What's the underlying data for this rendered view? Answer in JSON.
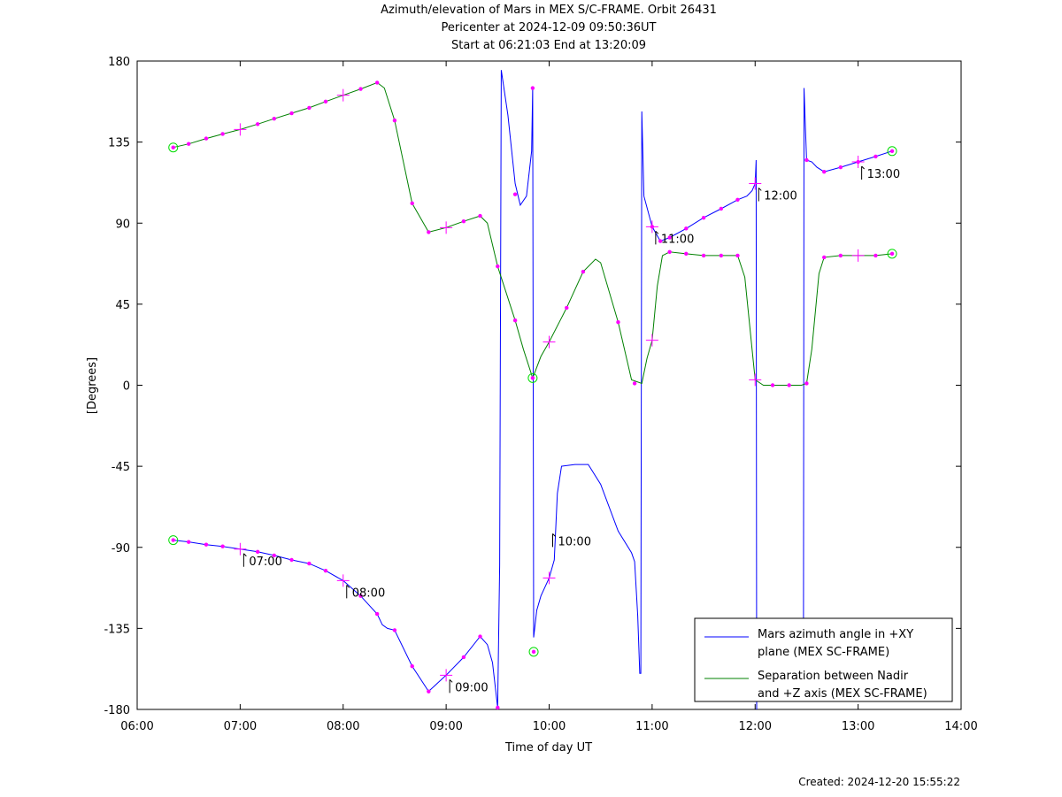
{
  "header": {
    "title": "Azimuth/elevation of Mars in MEX S/C-FRAME.  Orbit 26431",
    "pericenter": "Pericenter at 2024-12-09 09:50:36UT",
    "span": "Start at 06:21:03 End at 13:20:09"
  },
  "footer": {
    "created": "Created: 2024-12-20 15:55:22"
  },
  "chart_data": {
    "type": "line",
    "xlabel": "Time of day UT",
    "ylabel": "[Degrees]",
    "xlim": [
      6.0,
      14.0
    ],
    "ylim": [
      -180,
      180
    ],
    "xticks": [
      6,
      7,
      8,
      9,
      10,
      11,
      12,
      13,
      14
    ],
    "xtick_labels": [
      "06:00",
      "07:00",
      "08:00",
      "09:00",
      "10:00",
      "11:00",
      "12:00",
      "13:00",
      "14:00"
    ],
    "yticks": [
      180,
      135,
      90,
      45,
      0,
      -45,
      -90,
      -135,
      -180
    ],
    "ytick_labels": [
      "180",
      "135",
      "90",
      "45",
      "0",
      "-45",
      "-90",
      "-135",
      "-180"
    ],
    "grid": false,
    "legend_position": "bottom-right",
    "series": [
      {
        "name": "Mars azimuth angle in +XY plane (MEX SC-FRAME)",
        "legend_lines": [
          "Mars azimuth angle in +XY",
          "plane (MEX SC-FRAME)"
        ],
        "color": "#0000ff",
        "segments": [
          [
            [
              6.35,
              -86
            ],
            [
              6.5,
              -87
            ],
            [
              6.67,
              -88.5
            ],
            [
              6.83,
              -89.5
            ],
            [
              7.0,
              -91
            ],
            [
              7.17,
              -92.5
            ],
            [
              7.33,
              -94.5
            ],
            [
              7.5,
              -97
            ],
            [
              7.67,
              -99
            ],
            [
              7.83,
              -103
            ],
            [
              8.0,
              -108.5
            ],
            [
              8.17,
              -117
            ],
            [
              8.33,
              -127
            ],
            [
              8.38,
              -133
            ],
            [
              8.43,
              -135
            ],
            [
              8.5,
              -136
            ],
            [
              8.67,
              -156
            ],
            [
              8.83,
              -170
            ],
            [
              9.0,
              -161
            ],
            [
              9.17,
              -151
            ],
            [
              9.33,
              -139.5
            ],
            [
              9.4,
              -144
            ],
            [
              9.45,
              -154
            ],
            [
              9.5,
              -179
            ],
            [
              9.52,
              -100
            ],
            [
              9.535,
              175
            ],
            [
              9.6,
              150
            ],
            [
              9.67,
              112
            ],
            [
              9.72,
              100
            ],
            [
              9.78,
              105
            ],
            [
              9.83,
              130
            ],
            [
              9.84,
              165
            ],
            [
              9.85,
              -140
            ],
            [
              9.88,
              -125
            ],
            [
              9.92,
              -117
            ],
            [
              10.0,
              -107
            ],
            [
              10.05,
              -97
            ],
            [
              10.08,
              -60
            ],
            [
              10.12,
              -45
            ],
            [
              10.25,
              -44
            ],
            [
              10.38,
              -44
            ],
            [
              10.5,
              -55
            ],
            [
              10.67,
              -81
            ],
            [
              10.8,
              -93
            ],
            [
              10.83,
              -98
            ],
            [
              10.86,
              -128
            ],
            [
              10.88,
              -160
            ],
            [
              10.89,
              -160
            ],
            [
              10.9,
              152
            ],
            [
              10.92,
              105
            ],
            [
              11.0,
              88
            ],
            [
              11.08,
              80
            ],
            [
              11.17,
              82
            ],
            [
              11.33,
              87
            ],
            [
              11.5,
              93
            ],
            [
              11.67,
              98
            ],
            [
              11.83,
              103
            ],
            [
              11.92,
              105
            ],
            [
              11.97,
              108
            ],
            [
              12.0,
              112
            ],
            [
              12.01,
              125
            ],
            [
              12.015,
              -180
            ]
          ],
          [
            [
              12.47,
              -130
            ],
            [
              12.475,
              165
            ],
            [
              12.5,
              125
            ],
            [
              12.55,
              124
            ],
            [
              12.6,
              121
            ],
            [
              12.67,
              118.5
            ],
            [
              12.83,
              121
            ],
            [
              13.0,
              124
            ],
            [
              13.17,
              127
            ],
            [
              13.33,
              130
            ]
          ]
        ],
        "markers": [
          [
            9.5,
            -179
          ],
          [
            9.67,
            106
          ],
          [
            9.84,
            165
          ],
          [
            11.0,
            88
          ],
          [
            11.08,
            80
          ],
          [
            11.17,
            82
          ],
          [
            11.33,
            87
          ],
          [
            11.5,
            93
          ],
          [
            11.67,
            98
          ],
          [
            11.83,
            103
          ],
          [
            12.5,
            125
          ],
          [
            12.67,
            118.5
          ],
          [
            12.83,
            121
          ],
          [
            13.0,
            124
          ],
          [
            13.17,
            127
          ]
        ],
        "start_marker": [
          [
            6.35,
            -86
          ],
          [
            9.85,
            -148
          ]
        ],
        "end_marker": [
          [
            13.33,
            130
          ]
        ]
      },
      {
        "name": "Separation between Nadir and +Z axis (MEX SC-FRAME)",
        "legend_lines": [
          "Separation between Nadir",
          "and +Z axis (MEX SC-FRAME)"
        ],
        "color": "#008000",
        "segments": [
          [
            [
              6.35,
              132
            ],
            [
              6.5,
              134
            ],
            [
              6.67,
              137
            ],
            [
              6.83,
              139.5
            ],
            [
              7.0,
              142
            ],
            [
              7.17,
              145
            ],
            [
              7.33,
              148
            ],
            [
              7.5,
              151
            ],
            [
              7.67,
              154
            ],
            [
              7.83,
              157.5
            ],
            [
              8.0,
              161
            ],
            [
              8.17,
              164.5
            ],
            [
              8.33,
              168
            ],
            [
              8.4,
              165
            ],
            [
              8.5,
              147
            ],
            [
              8.67,
              101
            ],
            [
              8.83,
              85
            ],
            [
              9.0,
              87.5
            ],
            [
              9.17,
              91
            ],
            [
              9.33,
              94
            ],
            [
              9.4,
              90
            ],
            [
              9.5,
              66
            ],
            [
              9.67,
              36
            ],
            [
              9.75,
              20
            ],
            [
              9.84,
              4
            ],
            [
              9.92,
              16
            ],
            [
              10.0,
              24
            ],
            [
              10.17,
              43
            ],
            [
              10.33,
              63
            ],
            [
              10.45,
              70
            ],
            [
              10.5,
              68
            ],
            [
              10.67,
              35
            ],
            [
              10.8,
              3
            ],
            [
              10.9,
              1
            ],
            [
              10.95,
              15
            ],
            [
              11.0,
              25
            ],
            [
              11.05,
              55
            ],
            [
              11.1,
              72
            ],
            [
              11.17,
              74
            ],
            [
              11.33,
              73
            ],
            [
              11.5,
              72
            ],
            [
              11.67,
              72
            ],
            [
              11.83,
              72
            ],
            [
              11.9,
              60
            ],
            [
              11.97,
              20
            ],
            [
              12.0,
              3
            ],
            [
              12.08,
              0
            ],
            [
              12.17,
              0
            ],
            [
              12.33,
              0
            ],
            [
              12.45,
              0
            ],
            [
              12.5,
              1
            ],
            [
              12.55,
              20
            ],
            [
              12.62,
              62
            ],
            [
              12.67,
              71
            ],
            [
              12.83,
              72
            ],
            [
              13.0,
              72
            ],
            [
              13.17,
              72
            ],
            [
              13.33,
              73
            ]
          ]
        ],
        "markers": [
          [
            6.5,
            134
          ],
          [
            6.67,
            137
          ],
          [
            6.83,
            139.5
          ],
          [
            7.17,
            145
          ],
          [
            7.33,
            148
          ],
          [
            7.5,
            151
          ],
          [
            7.67,
            154
          ],
          [
            7.83,
            157.5
          ],
          [
            8.17,
            164.5
          ],
          [
            8.33,
            168
          ],
          [
            8.5,
            147
          ],
          [
            8.67,
            101
          ],
          [
            8.83,
            85
          ],
          [
            9.17,
            91
          ],
          [
            9.33,
            94
          ],
          [
            9.5,
            66
          ],
          [
            9.67,
            36
          ],
          [
            10.17,
            43
          ],
          [
            10.33,
            63
          ],
          [
            10.67,
            35
          ],
          [
            10.83,
            1
          ],
          [
            11.17,
            74
          ],
          [
            11.33,
            73
          ],
          [
            11.5,
            72
          ],
          [
            11.67,
            72
          ],
          [
            11.83,
            72
          ],
          [
            12.17,
            0
          ],
          [
            12.33,
            0
          ],
          [
            12.5,
            1
          ],
          [
            12.67,
            71
          ],
          [
            12.83,
            72
          ],
          [
            13.17,
            72
          ]
        ],
        "start_marker": [
          [
            6.35,
            132
          ],
          [
            9.84,
            4
          ]
        ],
        "end_marker": [
          [
            13.33,
            73
          ]
        ]
      }
    ],
    "azimuth_markers_early": [
      [
        6.5,
        -87
      ],
      [
        6.67,
        -88.5
      ],
      [
        6.83,
        -89.5
      ],
      [
        7.17,
        -92.5
      ],
      [
        7.33,
        -94.5
      ],
      [
        7.5,
        -97
      ],
      [
        7.67,
        -99
      ],
      [
        7.83,
        -103
      ],
      [
        8.17,
        -117
      ],
      [
        8.33,
        -127
      ],
      [
        8.5,
        -136
      ],
      [
        8.67,
        -156
      ],
      [
        8.83,
        -170
      ],
      [
        9.17,
        -151
      ],
      [
        9.33,
        -139.5
      ]
    ],
    "hour_crosses": [
      [
        7.0,
        -91
      ],
      [
        8.0,
        -108.5
      ],
      [
        9.0,
        -161
      ],
      [
        10.0,
        -107
      ],
      [
        11.0,
        88
      ],
      [
        12.0,
        112
      ],
      [
        13.0,
        124
      ],
      [
        7.0,
        142
      ],
      [
        8.0,
        161
      ],
      [
        9.0,
        87.5
      ],
      [
        10.0,
        24
      ],
      [
        11.0,
        25
      ],
      [
        12.0,
        3
      ],
      [
        13.0,
        72
      ]
    ],
    "annotations": [
      {
        "label": "07:00",
        "x": 7.0,
        "y": -91
      },
      {
        "label": "08:00",
        "x": 8.0,
        "y": -108.5
      },
      {
        "label": "09:00",
        "x": 9.0,
        "y": -161
      },
      {
        "label": "10:00",
        "x": 10.0,
        "y": -80
      },
      {
        "label": "11:00",
        "x": 11.0,
        "y": 88
      },
      {
        "label": "12:00",
        "x": 12.0,
        "y": 112
      },
      {
        "label": "13:00",
        "x": 13.0,
        "y": 124
      }
    ]
  }
}
